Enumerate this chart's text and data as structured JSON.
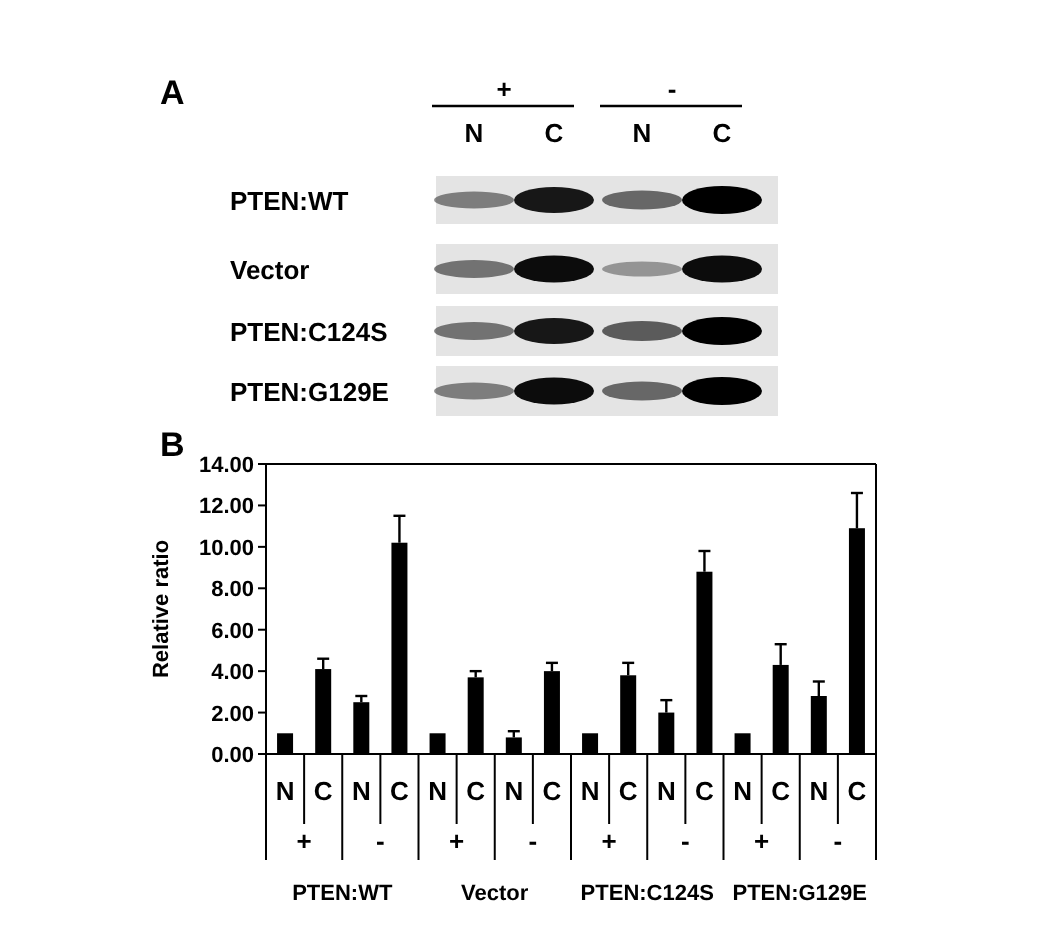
{
  "chart_data": {
    "type": "bar",
    "ylabel": "Relative ratio",
    "categories": [
      "N",
      "C",
      "N",
      "C",
      "N",
      "C",
      "N",
      "C",
      "N",
      "C",
      "N",
      "C",
      "N",
      "C",
      "N",
      "C"
    ],
    "values": [
      1.0,
      4.1,
      2.5,
      10.2,
      1.0,
      3.7,
      0.8,
      4.0,
      1.0,
      3.8,
      2.0,
      8.8,
      1.0,
      4.3,
      2.8,
      10.9
    ],
    "errors": [
      null,
      [
        4.1,
        4.6
      ],
      [
        2.5,
        2.8
      ],
      [
        10.2,
        11.5
      ],
      null,
      [
        3.7,
        4.0
      ],
      [
        0.8,
        1.1
      ],
      [
        4.0,
        4.4
      ],
      null,
      [
        3.8,
        4.4
      ],
      [
        2.0,
        2.6
      ],
      [
        8.8,
        9.8
      ],
      null,
      [
        4.3,
        5.3
      ],
      [
        2.8,
        3.5
      ],
      [
        10.9,
        12.6
      ]
    ],
    "color": "#000000",
    "ylim": [
      0,
      14
    ],
    "yticks": [
      {
        "value": 0,
        "label": "0.00"
      },
      {
        "value": 2,
        "label": "2.00"
      },
      {
        "value": 4,
        "label": "4.00"
      },
      {
        "value": 6,
        "label": "6.00"
      },
      {
        "value": 8,
        "label": "8.00"
      },
      {
        "value": 10,
        "label": "10.00"
      },
      {
        "value": 12,
        "label": "12.00"
      },
      {
        "value": 14,
        "label": "14.00"
      }
    ],
    "grid": false,
    "annotations": [
      "A",
      "B",
      "+",
      "-",
      "N",
      "C",
      "N",
      "C",
      "PTEN:WT",
      "Vector",
      "PTEN:C124S",
      "PTEN:G129E",
      "+",
      "-",
      "+",
      "-",
      "+",
      "-",
      "+",
      "-",
      "PTEN:WT",
      "Vector",
      "PTEN:C124S",
      "PTEN:G129E"
    ]
  }
}
